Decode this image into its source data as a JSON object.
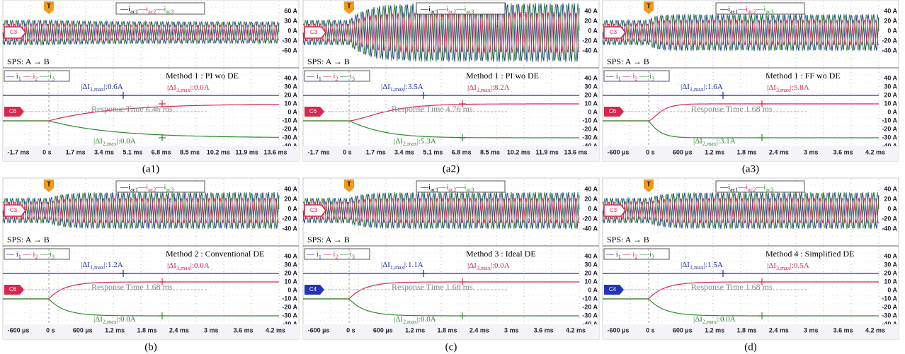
{
  "panels": [
    {
      "caption": "(a1)",
      "trigger": "T",
      "legend_top": [
        "—i",
        "ac1",
        "—i",
        "ac2",
        "—i",
        "ac3"
      ],
      "legend_bottom": [
        "— i",
        "1",
        " — i",
        "2",
        " — i",
        "3"
      ],
      "sps": "SPS: A → B",
      "method": "Method 1 : PI wo DE",
      "response": "Response Time 6.46 ms",
      "ann1": [
        "|ΔI",
        "1,max",
        "|:0.6A"
      ],
      "ann3": [
        "|ΔI",
        "3,max",
        "|:0.0A"
      ],
      "ann2": [
        "|ΔI",
        "2,max",
        "|:0.0A"
      ],
      "top_channel": {
        "label": "C3",
        "color": "#d8264e"
      },
      "bottom_channel": {
        "label": "C6",
        "color": "#d8264e"
      },
      "top_yticks": [
        "60 A",
        "30 A",
        "0 A",
        "-30 A",
        "-60 A"
      ],
      "bottom_yticks": [
        "40 A",
        "30 A",
        "20 A",
        "10 A",
        "0 A",
        "-10 A",
        "-20 A",
        "-30 A",
        "-40 A"
      ],
      "xticks": [
        "-1.7 ms",
        "0 s",
        "1.7 ms",
        "3.4 ms",
        "5.1 ms",
        "6.8 ms",
        "8.5 ms",
        "10.2 ms",
        "11.9 ms",
        "13.6 ms"
      ]
    },
    {
      "caption": "(a2)",
      "trigger": "T",
      "legend_top": [
        "—i",
        "ac1",
        "—i",
        "ac2",
        "—i",
        "ac3"
      ],
      "legend_bottom": [
        "— i",
        "1",
        " — i",
        "2",
        " — i",
        "3"
      ],
      "sps": "SPS: A → B",
      "method": "Method 1 : PI wo DE",
      "response": "Response Time 4.76 ms",
      "ann1": [
        "|ΔI",
        "1,max",
        "|:3.5A"
      ],
      "ann3": [
        "|ΔI",
        "3,max",
        "|:8.2A"
      ],
      "ann2": [
        "|ΔI",
        "2,max",
        "|:5.3A"
      ],
      "top_channel": {
        "label": "C3",
        "color": "#d8264e"
      },
      "bottom_channel": {
        "label": "C6",
        "color": "#d8264e"
      },
      "top_yticks": [
        "40 A",
        "20 A",
        "0 A",
        "-20 A",
        "-40 A"
      ],
      "bottom_yticks": [
        "40 A",
        "30 A",
        "20 A",
        "10 A",
        "0 A",
        "-10 A",
        "-20 A",
        "-30 A",
        "-40 A"
      ],
      "xticks": [
        "-1.7 ms",
        "0 s",
        "1.7 ms",
        "3.4 ms",
        "5.1 ms",
        "6.8 ms",
        "8.5 ms",
        "10.2 ms",
        "11.9 ms",
        "13.6 ms"
      ]
    },
    {
      "caption": "(a3)",
      "trigger": "T",
      "legend_top": [
        "—i",
        "ac1",
        "—i",
        "ac2",
        "—i",
        "ac3"
      ],
      "legend_bottom": [
        "— i",
        "1",
        " — i",
        "2",
        " — i",
        "3"
      ],
      "sps": "SPS: A → B",
      "method": "Method 1 : FF wo DE",
      "response": "Response Time 1.68 ms",
      "ann1": [
        "|ΔI",
        "1,max",
        "|:1.6A"
      ],
      "ann3": [
        "|ΔI",
        "3,max",
        "|:5.8A"
      ],
      "ann2": [
        "|ΔI",
        "2,max",
        "|:3.1A"
      ],
      "top_channel": {
        "label": "C3",
        "color": "#d8264e"
      },
      "bottom_channel": {
        "label": "C6",
        "color": "#d8264e"
      },
      "top_yticks": [
        "40 A",
        "20 A",
        "0 A",
        "-20 A",
        "-40 A"
      ],
      "bottom_yticks": [
        "40 A",
        "30 A",
        "20 A",
        "10 A",
        "0 A",
        "-10 A",
        "-20 A",
        "-30 A",
        "-40 A"
      ],
      "xticks": [
        "-600 µs",
        "0 s",
        "600 µs",
        "1.2 ms",
        "1.8 ms",
        "2.4 ms",
        "3 ms",
        "3.6 ms",
        "4.2 ms"
      ]
    },
    {
      "caption": "(b)",
      "trigger": "T",
      "legend_top": [
        "—i",
        "ac1",
        "—i",
        "ac2",
        "—i",
        "ac3"
      ],
      "legend_bottom": [
        "— i",
        "1",
        " — i",
        "2",
        " — i",
        "3"
      ],
      "sps": "SPS: A → B",
      "method": "Method 2 : Conventional DE",
      "response": "Response Time 1.68 ms",
      "ann1": [
        "|ΔI",
        "1,max",
        "|:1.2A"
      ],
      "ann3": [
        "|ΔI",
        "3,max",
        "|:0.0A"
      ],
      "ann2": [
        "|ΔI",
        "2,max",
        "|:0.0A"
      ],
      "top_channel": {
        "label": "C3",
        "color": "#d8264e"
      },
      "bottom_channel": {
        "label": "C6",
        "color": "#d8264e"
      },
      "top_yticks": [
        "40 A",
        "20 A",
        "0 A",
        "-20 A",
        "-40 A"
      ],
      "bottom_yticks": [
        "40 A",
        "30 A",
        "20 A",
        "10 A",
        "0 A",
        "-10 A",
        "-20 A",
        "-30 A",
        "-40 A"
      ],
      "xticks": [
        "-600 µs",
        "0 s",
        "600 µs",
        "1.2 ms",
        "1.8 ms",
        "2.4 ms",
        "3 ms",
        "3.6 ms",
        "4.2 ms"
      ]
    },
    {
      "caption": "(c)",
      "trigger": "T",
      "legend_top": [
        "—i",
        "ac1",
        "—i",
        "ac2",
        "—i",
        "ac3"
      ],
      "legend_bottom": [
        "— i",
        "1",
        " — i",
        "2",
        " — i",
        "3"
      ],
      "sps": "SPS: A → B",
      "method": "Method 3 : Ideal DE",
      "response": "Response Time 1.68 ms",
      "ann1": [
        "|ΔI",
        "1,max",
        "|:1.1A"
      ],
      "ann3": [
        "|ΔI",
        "3,max",
        "|:0.0A"
      ],
      "ann2": [
        "|ΔI",
        "2,max",
        "|:0.0A"
      ],
      "top_channel": {
        "label": "C3",
        "color": "#d8264e"
      },
      "bottom_channel": {
        "label": "C4",
        "color": "#2233b8"
      },
      "top_yticks": [
        "40 A",
        "20 A",
        "0 A",
        "-20 A",
        "-40 A"
      ],
      "bottom_yticks": [
        "40 A",
        "30 A",
        "20 A",
        "10 A",
        "0 A",
        "-10 A",
        "-20 A",
        "-30 A",
        "-40 A"
      ],
      "xticks": [
        "-600 µs",
        "0 s",
        "600 µs",
        "1.2 ms",
        "1.8 ms",
        "2.4 ms",
        "3 ms",
        "3.6 ms",
        "4.2 ms"
      ]
    },
    {
      "caption": "(d)",
      "trigger": "T",
      "legend_top": [
        "—i",
        "ac1",
        "—i",
        "ac2",
        "—i",
        "ac3"
      ],
      "legend_bottom": [
        "— i",
        "1",
        " — i",
        "2",
        " — i",
        "3"
      ],
      "sps": "SPS: A → B",
      "method": "Method 4 : Simplified DE",
      "response": "Response Time 1.68 ms",
      "ann1": [
        "|ΔI",
        "1,max",
        "|:1.5A"
      ],
      "ann3": [
        "|ΔI",
        "3,max",
        "|:0.5A"
      ],
      "ann2": [
        "|ΔI",
        "2,max",
        "|:0.0A"
      ],
      "top_channel": {
        "label": "C3",
        "color": "#d8264e"
      },
      "bottom_channel": {
        "label": "C4",
        "color": "#2233b8"
      },
      "top_yticks": [
        "40 A",
        "20 A",
        "0 A",
        "-20 A",
        "-40 A"
      ],
      "bottom_yticks": [
        "40 A",
        "30 A",
        "20 A",
        "10 A",
        "0 A",
        "-10 A",
        "-20 A",
        "-30 A",
        "-40 A"
      ],
      "xticks": [
        "-600 µs",
        "0 s",
        "600 µs",
        "1.2 ms",
        "1.8 ms",
        "2.4 ms",
        "3 ms",
        "3.6 ms",
        "4.2 ms"
      ]
    }
  ]
}
